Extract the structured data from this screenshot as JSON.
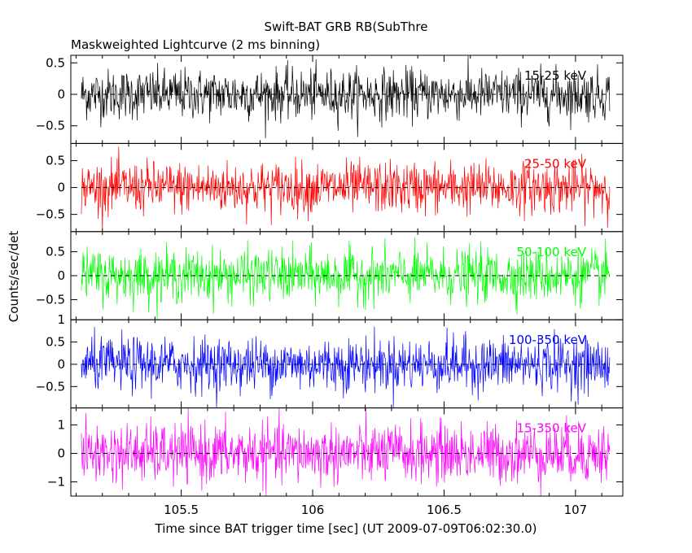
{
  "chart_data": {
    "type": "line",
    "title": "Swift-BAT GRB RB(SubThre",
    "subtitle": "Maskweighted Lightcurve (2 ms binning)",
    "xlabel": "Time since BAT trigger time [sec] (UT 2009-07-09T06:02:30.0)",
    "ylabel": "Counts/sec/det",
    "xlim": [
      105.08,
      107.18
    ],
    "data_range": [
      105.12,
      107.13
    ],
    "x_ticks": [
      {
        "value": 105.5,
        "label": "105.5"
      },
      {
        "value": 106,
        "label": "106"
      },
      {
        "value": 106.5,
        "label": "106.5"
      },
      {
        "value": 107,
        "label": "107"
      }
    ],
    "grid": false,
    "panels": [
      {
        "color": "#000000",
        "band_label": "15-25 keV",
        "ylim": [
          -0.78,
          0.62
        ],
        "y_ticks": [
          {
            "value": 0.5,
            "label": "0.5"
          },
          {
            "value": 0,
            "label": "0"
          },
          {
            "value": -0.5,
            "label": "−0.5"
          }
        ],
        "noise_sigma": 0.2
      },
      {
        "color": "#ff0000",
        "band_label": "25-50 keV",
        "ylim": [
          -0.82,
          0.82
        ],
        "y_ticks": [
          {
            "value": 0.5,
            "label": "0.5"
          },
          {
            "value": 0,
            "label": "0"
          },
          {
            "value": -0.5,
            "label": "−0.5"
          }
        ],
        "noise_sigma": 0.24
      },
      {
        "color": "#00ff00",
        "band_label": "50-100 keV",
        "ylim": [
          -0.92,
          0.92
        ],
        "y_ticks": [
          {
            "value": 0.5,
            "label": "0.5"
          },
          {
            "value": 0,
            "label": "0"
          },
          {
            "value": -0.5,
            "label": "−0.5"
          }
        ],
        "noise_sigma": 0.27
      },
      {
        "color": "#0000ff",
        "band_label": "100-350 keV",
        "ylim": [
          -0.98,
          1.0
        ],
        "y_ticks": [
          {
            "value": 1,
            "label": "1"
          },
          {
            "value": 0.5,
            "label": "0.5"
          },
          {
            "value": 0,
            "label": "0"
          },
          {
            "value": -0.5,
            "label": "−0.5"
          }
        ],
        "noise_sigma": 0.3
      },
      {
        "color": "#ff00ff",
        "band_label": "15-350 keV",
        "ylim": [
          -1.5,
          1.6
        ],
        "y_ticks": [
          {
            "value": 1,
            "label": "1"
          },
          {
            "value": 0,
            "label": "0"
          },
          {
            "value": -1,
            "label": "−1"
          }
        ],
        "noise_sigma": 0.52
      }
    ]
  }
}
